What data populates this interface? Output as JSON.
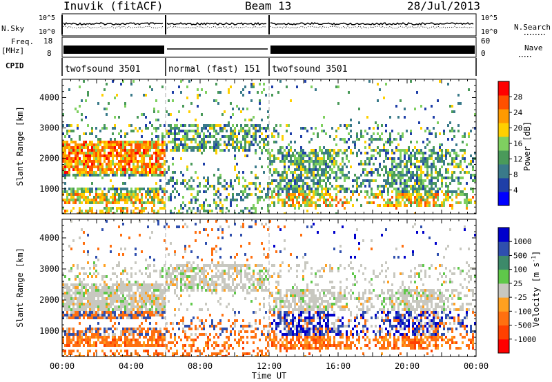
{
  "header": {
    "station": "Inuvik (fitACF)",
    "beam": "Beam 13",
    "date": "28/Jul/2013"
  },
  "status_panel": {
    "nsky_label": "N.Sky",
    "nsky_ticks": [
      "10^5",
      "10^0"
    ],
    "nsearch_label": "N.Search",
    "nsearch_ticks": [
      "10^5",
      "10^0"
    ],
    "freq_label": "Freq.",
    "freq_unit": "[MHz]",
    "freq_ticks": [
      "18",
      "8"
    ],
    "nave_label": "Nave",
    "nave_ticks": [
      "60",
      "0"
    ],
    "cpid_label": "CPID",
    "cpid_segments": [
      {
        "label": "twofsound 3501",
        "start_hour": 0,
        "end_hour": 6
      },
      {
        "label": "normal (fast) 151",
        "start_hour": 6,
        "end_hour": 12
      },
      {
        "label": "twofsound 3501",
        "start_hour": 12,
        "end_hour": 24
      }
    ]
  },
  "colors": {
    "power_scale": [
      "#0000ff",
      "#1f3fa8",
      "#3a7a8a",
      "#4a9a5a",
      "#7fd060",
      "#ffd000",
      "#ff9a00",
      "#ff5000",
      "#ff0000"
    ],
    "velocity_scale": [
      "#0000cc",
      "#2f4fae",
      "#3d8a6a",
      "#5fc84a",
      "#c8c8c0",
      "#ffa020",
      "#ff7010",
      "#ff4000",
      "#ff0000"
    ]
  },
  "chart_data": [
    {
      "type": "heatmap",
      "title": "Power",
      "ylabel": "Slant Range [km]",
      "xlabel": "Time UT",
      "xlim": [
        0,
        24
      ],
      "x_ticks": [
        "00:00",
        "04:00",
        "08:00",
        "12:00",
        "16:00",
        "20:00",
        "00:00"
      ],
      "ylim": [
        180,
        4600
      ],
      "y_ticks": [
        1000,
        2000,
        3000,
        4000
      ],
      "colorbar": {
        "label": "Power [dB]",
        "ticks": [
          4,
          8,
          12,
          16,
          20,
          24,
          28
        ],
        "range": [
          0,
          30
        ]
      },
      "mode_changes_hours": [
        6,
        12
      ]
    },
    {
      "type": "heatmap",
      "title": "Velocity",
      "ylabel": "Slant Range [km]",
      "xlabel": "Time UT",
      "xlim": [
        0,
        24
      ],
      "x_ticks": [
        "00:00",
        "04:00",
        "08:00",
        "12:00",
        "16:00",
        "20:00",
        "00:00"
      ],
      "ylim": [
        180,
        4600
      ],
      "y_ticks": [
        1000,
        2000,
        3000,
        4000
      ],
      "colorbar": {
        "label": "Velocity [m s^-1]",
        "ticks": [
          "1000",
          "500",
          "100",
          "25",
          "-25",
          "-100",
          "-500",
          "-1000"
        ]
      },
      "mode_changes_hours": [
        6,
        12
      ]
    }
  ]
}
